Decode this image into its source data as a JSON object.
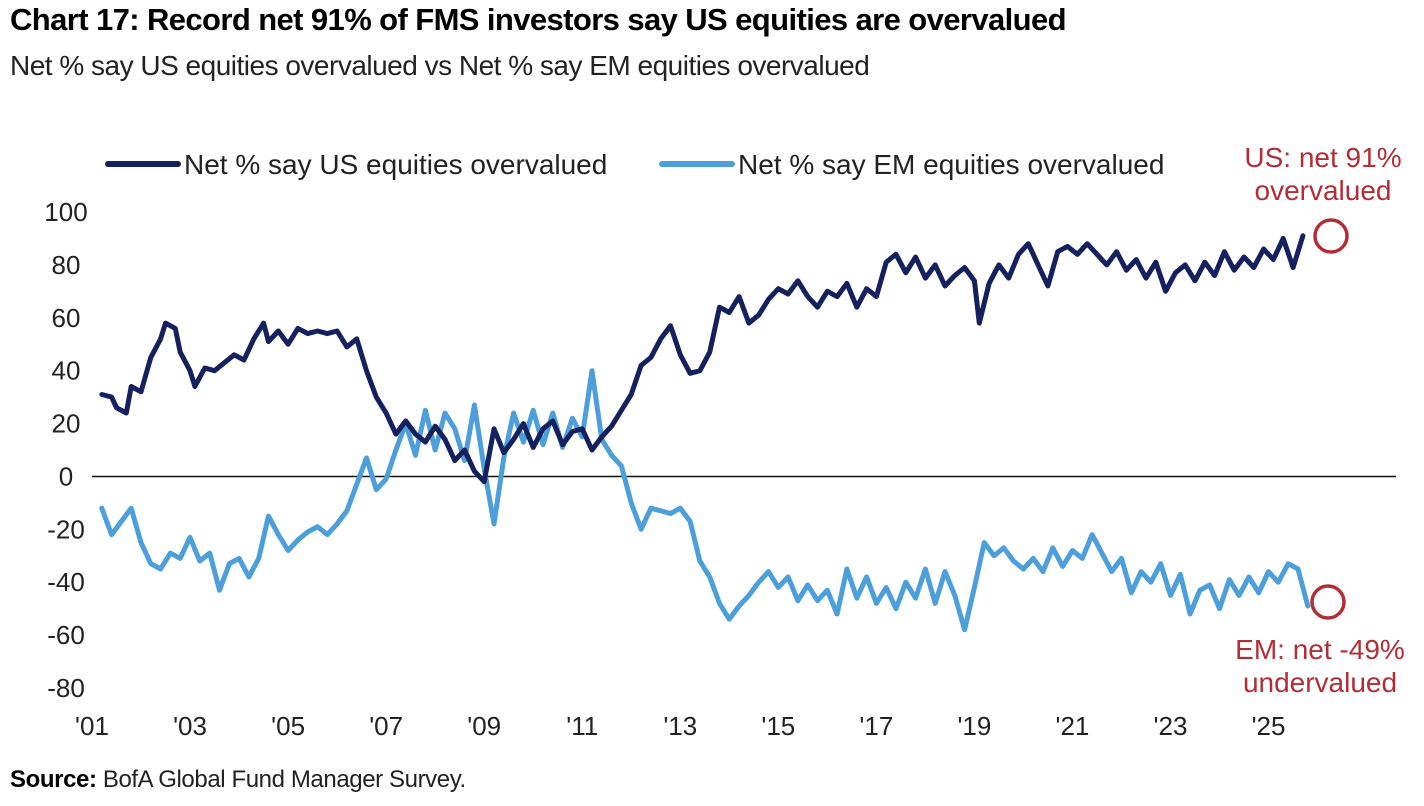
{
  "header": {
    "title": "Chart 17: Record net 91% of FMS investors say US equities are overvalued",
    "subtitle": "Net % say US equities overvalued vs Net % say EM equities overvalued"
  },
  "footer": {
    "source_label": "Source:",
    "source_text": "BofA Global Fund Manager Survey."
  },
  "colors": {
    "us_series": "#15215e",
    "em_series": "#4d9fdc",
    "annotation": "#b22d35",
    "zero_line": "#111111"
  },
  "chart_data": {
    "type": "line",
    "title": "Chart 17: Record net 91% of FMS investors say US equities are overvalued",
    "subtitle": "Net % say US equities overvalued vs Net % say EM equities overvalued",
    "xlabel": "",
    "ylabel": "",
    "xlim": [
      2001.0,
      2027.6
    ],
    "ylim": [
      -80,
      100
    ],
    "y_ticks": [
      100,
      80,
      60,
      40,
      20,
      0,
      -20,
      -40,
      -60,
      -80
    ],
    "x_tick_values": [
      2001,
      2003,
      2005,
      2007,
      2009,
      2011,
      2013,
      2015,
      2017,
      2019,
      2021,
      2023,
      2025
    ],
    "x_tick_labels": [
      "'01",
      "'03",
      "'05",
      "'07",
      "'09",
      "'11",
      "'13",
      "'15",
      "'17",
      "'19",
      "'21",
      "'23",
      "'25"
    ],
    "legend_position": "top",
    "grid": false,
    "series": [
      {
        "name": "Net % say US equities overvalued",
        "color": "#15215e",
        "points": [
          [
            2001.2,
            31
          ],
          [
            2001.4,
            30
          ],
          [
            2001.5,
            26
          ],
          [
            2001.7,
            24
          ],
          [
            2001.8,
            34
          ],
          [
            2002.0,
            32
          ],
          [
            2002.2,
            45
          ],
          [
            2002.4,
            52
          ],
          [
            2002.5,
            58
          ],
          [
            2002.7,
            56
          ],
          [
            2002.8,
            47
          ],
          [
            2003.0,
            40
          ],
          [
            2003.1,
            34
          ],
          [
            2003.3,
            41
          ],
          [
            2003.5,
            40
          ],
          [
            2003.7,
            43
          ],
          [
            2003.9,
            46
          ],
          [
            2004.1,
            44
          ],
          [
            2004.3,
            52
          ],
          [
            2004.5,
            58
          ],
          [
            2004.6,
            51
          ],
          [
            2004.8,
            55
          ],
          [
            2005.0,
            50
          ],
          [
            2005.2,
            56
          ],
          [
            2005.4,
            54
          ],
          [
            2005.6,
            55
          ],
          [
            2005.8,
            54
          ],
          [
            2006.0,
            55
          ],
          [
            2006.2,
            49
          ],
          [
            2006.4,
            52
          ],
          [
            2006.6,
            40
          ],
          [
            2006.8,
            30
          ],
          [
            2007.0,
            24
          ],
          [
            2007.2,
            16
          ],
          [
            2007.4,
            21
          ],
          [
            2007.6,
            16
          ],
          [
            2007.8,
            13
          ],
          [
            2008.0,
            19
          ],
          [
            2008.2,
            14
          ],
          [
            2008.4,
            6
          ],
          [
            2008.6,
            10
          ],
          [
            2008.8,
            2
          ],
          [
            2009.0,
            -2
          ],
          [
            2009.2,
            18
          ],
          [
            2009.4,
            9
          ],
          [
            2009.6,
            14
          ],
          [
            2009.8,
            20
          ],
          [
            2010.0,
            11
          ],
          [
            2010.2,
            18
          ],
          [
            2010.4,
            21
          ],
          [
            2010.6,
            12
          ],
          [
            2010.8,
            17
          ],
          [
            2011.0,
            18
          ],
          [
            2011.2,
            10
          ],
          [
            2011.4,
            15
          ],
          [
            2011.6,
            19
          ],
          [
            2011.8,
            25
          ],
          [
            2012.0,
            31
          ],
          [
            2012.2,
            42
          ],
          [
            2012.4,
            45
          ],
          [
            2012.6,
            52
          ],
          [
            2012.8,
            57
          ],
          [
            2013.0,
            46
          ],
          [
            2013.2,
            39
          ],
          [
            2013.4,
            40
          ],
          [
            2013.6,
            47
          ],
          [
            2013.8,
            64
          ],
          [
            2014.0,
            62
          ],
          [
            2014.2,
            68
          ],
          [
            2014.4,
            58
          ],
          [
            2014.6,
            61
          ],
          [
            2014.8,
            67
          ],
          [
            2015.0,
            71
          ],
          [
            2015.2,
            69
          ],
          [
            2015.4,
            74
          ],
          [
            2015.6,
            68
          ],
          [
            2015.8,
            64
          ],
          [
            2016.0,
            70
          ],
          [
            2016.2,
            68
          ],
          [
            2016.4,
            73
          ],
          [
            2016.6,
            64
          ],
          [
            2016.8,
            71
          ],
          [
            2017.0,
            68
          ],
          [
            2017.2,
            81
          ],
          [
            2017.4,
            84
          ],
          [
            2017.6,
            77
          ],
          [
            2017.8,
            83
          ],
          [
            2018.0,
            75
          ],
          [
            2018.2,
            80
          ],
          [
            2018.4,
            72
          ],
          [
            2018.6,
            76
          ],
          [
            2018.8,
            79
          ],
          [
            2019.0,
            74
          ],
          [
            2019.1,
            58
          ],
          [
            2019.3,
            73
          ],
          [
            2019.5,
            80
          ],
          [
            2019.7,
            75
          ],
          [
            2019.9,
            84
          ],
          [
            2020.1,
            88
          ],
          [
            2020.3,
            80
          ],
          [
            2020.5,
            72
          ],
          [
            2020.7,
            85
          ],
          [
            2020.9,
            87
          ],
          [
            2021.1,
            84
          ],
          [
            2021.3,
            88
          ],
          [
            2021.5,
            84
          ],
          [
            2021.7,
            80
          ],
          [
            2021.9,
            85
          ],
          [
            2022.1,
            78
          ],
          [
            2022.3,
            82
          ],
          [
            2022.5,
            75
          ],
          [
            2022.7,
            81
          ],
          [
            2022.9,
            70
          ],
          [
            2023.1,
            77
          ],
          [
            2023.3,
            80
          ],
          [
            2023.5,
            74
          ],
          [
            2023.7,
            81
          ],
          [
            2023.9,
            76
          ],
          [
            2024.1,
            85
          ],
          [
            2024.3,
            78
          ],
          [
            2024.5,
            83
          ],
          [
            2024.7,
            79
          ],
          [
            2024.9,
            86
          ],
          [
            2025.1,
            82
          ],
          [
            2025.3,
            90
          ],
          [
            2025.5,
            79
          ],
          [
            2025.7,
            91
          ]
        ]
      },
      {
        "name": "Net % say EM equities overvalued",
        "color": "#4d9fdc",
        "points": [
          [
            2001.2,
            -12
          ],
          [
            2001.4,
            -22
          ],
          [
            2001.6,
            -17
          ],
          [
            2001.8,
            -12
          ],
          [
            2002.0,
            -25
          ],
          [
            2002.2,
            -33
          ],
          [
            2002.4,
            -35
          ],
          [
            2002.6,
            -29
          ],
          [
            2002.8,
            -31
          ],
          [
            2003.0,
            -23
          ],
          [
            2003.2,
            -32
          ],
          [
            2003.4,
            -29
          ],
          [
            2003.6,
            -43
          ],
          [
            2003.8,
            -33
          ],
          [
            2004.0,
            -31
          ],
          [
            2004.2,
            -38
          ],
          [
            2004.4,
            -31
          ],
          [
            2004.6,
            -15
          ],
          [
            2004.8,
            -22
          ],
          [
            2005.0,
            -28
          ],
          [
            2005.2,
            -24
          ],
          [
            2005.4,
            -21
          ],
          [
            2005.6,
            -19
          ],
          [
            2005.8,
            -22
          ],
          [
            2006.0,
            -18
          ],
          [
            2006.2,
            -13
          ],
          [
            2006.4,
            -3
          ],
          [
            2006.6,
            7
          ],
          [
            2006.8,
            -5
          ],
          [
            2007.0,
            -1
          ],
          [
            2007.2,
            10
          ],
          [
            2007.4,
            20
          ],
          [
            2007.6,
            8
          ],
          [
            2007.8,
            25
          ],
          [
            2008.0,
            10
          ],
          [
            2008.2,
            24
          ],
          [
            2008.4,
            18
          ],
          [
            2008.6,
            6
          ],
          [
            2008.8,
            27
          ],
          [
            2009.0,
            3
          ],
          [
            2009.2,
            -18
          ],
          [
            2009.4,
            7
          ],
          [
            2009.6,
            24
          ],
          [
            2009.8,
            13
          ],
          [
            2010.0,
            25
          ],
          [
            2010.2,
            12
          ],
          [
            2010.4,
            24
          ],
          [
            2010.6,
            11
          ],
          [
            2010.8,
            22
          ],
          [
            2011.0,
            15
          ],
          [
            2011.2,
            40
          ],
          [
            2011.4,
            14
          ],
          [
            2011.6,
            8
          ],
          [
            2011.8,
            4
          ],
          [
            2012.0,
            -10
          ],
          [
            2012.2,
            -20
          ],
          [
            2012.4,
            -12
          ],
          [
            2012.6,
            -13
          ],
          [
            2012.8,
            -14
          ],
          [
            2013.0,
            -12
          ],
          [
            2013.2,
            -17
          ],
          [
            2013.4,
            -32
          ],
          [
            2013.6,
            -38
          ],
          [
            2013.8,
            -48
          ],
          [
            2014.0,
            -54
          ],
          [
            2014.2,
            -49
          ],
          [
            2014.4,
            -45
          ],
          [
            2014.6,
            -40
          ],
          [
            2014.8,
            -36
          ],
          [
            2015.0,
            -42
          ],
          [
            2015.2,
            -38
          ],
          [
            2015.4,
            -47
          ],
          [
            2015.6,
            -41
          ],
          [
            2015.8,
            -47
          ],
          [
            2016.0,
            -43
          ],
          [
            2016.2,
            -52
          ],
          [
            2016.4,
            -35
          ],
          [
            2016.6,
            -46
          ],
          [
            2016.8,
            -38
          ],
          [
            2017.0,
            -48
          ],
          [
            2017.2,
            -42
          ],
          [
            2017.4,
            -50
          ],
          [
            2017.6,
            -40
          ],
          [
            2017.8,
            -46
          ],
          [
            2018.0,
            -35
          ],
          [
            2018.2,
            -48
          ],
          [
            2018.4,
            -36
          ],
          [
            2018.6,
            -45
          ],
          [
            2018.8,
            -58
          ],
          [
            2019.0,
            -42
          ],
          [
            2019.2,
            -25
          ],
          [
            2019.4,
            -30
          ],
          [
            2019.6,
            -27
          ],
          [
            2019.8,
            -32
          ],
          [
            2020.0,
            -35
          ],
          [
            2020.2,
            -31
          ],
          [
            2020.4,
            -36
          ],
          [
            2020.6,
            -27
          ],
          [
            2020.8,
            -34
          ],
          [
            2021.0,
            -28
          ],
          [
            2021.2,
            -31
          ],
          [
            2021.4,
            -22
          ],
          [
            2021.6,
            -29
          ],
          [
            2021.8,
            -36
          ],
          [
            2022.0,
            -31
          ],
          [
            2022.2,
            -44
          ],
          [
            2022.4,
            -36
          ],
          [
            2022.6,
            -40
          ],
          [
            2022.8,
            -33
          ],
          [
            2023.0,
            -45
          ],
          [
            2023.2,
            -37
          ],
          [
            2023.4,
            -52
          ],
          [
            2023.6,
            -43
          ],
          [
            2023.8,
            -41
          ],
          [
            2024.0,
            -50
          ],
          [
            2024.2,
            -39
          ],
          [
            2024.4,
            -45
          ],
          [
            2024.6,
            -38
          ],
          [
            2024.8,
            -44
          ],
          [
            2025.0,
            -36
          ],
          [
            2025.2,
            -40
          ],
          [
            2025.4,
            -33
          ],
          [
            2025.6,
            -35
          ],
          [
            2025.8,
            -49
          ]
        ]
      }
    ],
    "annotations": [
      {
        "series": "Net % say US equities overvalued",
        "x": 2025.7,
        "y": 91,
        "lines": [
          "US: net 91%",
          "overvalued"
        ]
      },
      {
        "series": "Net % say EM equities overvalued",
        "x": 2025.8,
        "y": -49,
        "lines": [
          "EM: net -49%",
          "undervalued"
        ]
      }
    ]
  }
}
